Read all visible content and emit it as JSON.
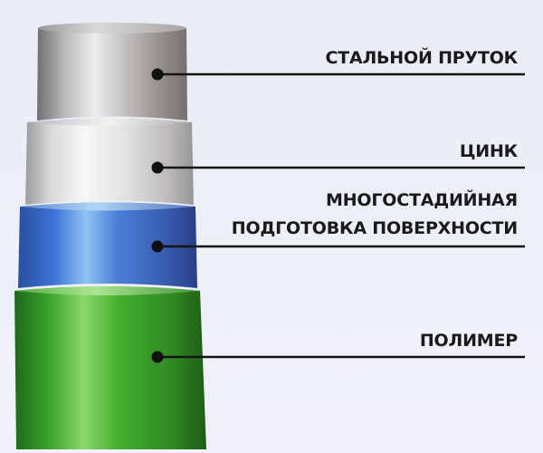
{
  "layers": [
    {
      "id": "steel",
      "label_lines": [
        "СТАЛЬНОЙ ПРУТОК"
      ],
      "color": "#9f9f9f"
    },
    {
      "id": "zinc",
      "label_lines": [
        "ЦИНК"
      ],
      "color": "#d2d2d4"
    },
    {
      "id": "surface-prep",
      "label_lines": [
        "МНОГОСТАДИЙНАЯ",
        "ПОДГОТОВКА ПОВЕРХНОСТИ"
      ],
      "color": "#3f6fd0"
    },
    {
      "id": "polymer",
      "label_lines": [
        "ПОЛИМЕР"
      ],
      "color": "#3aa32a"
    }
  ]
}
